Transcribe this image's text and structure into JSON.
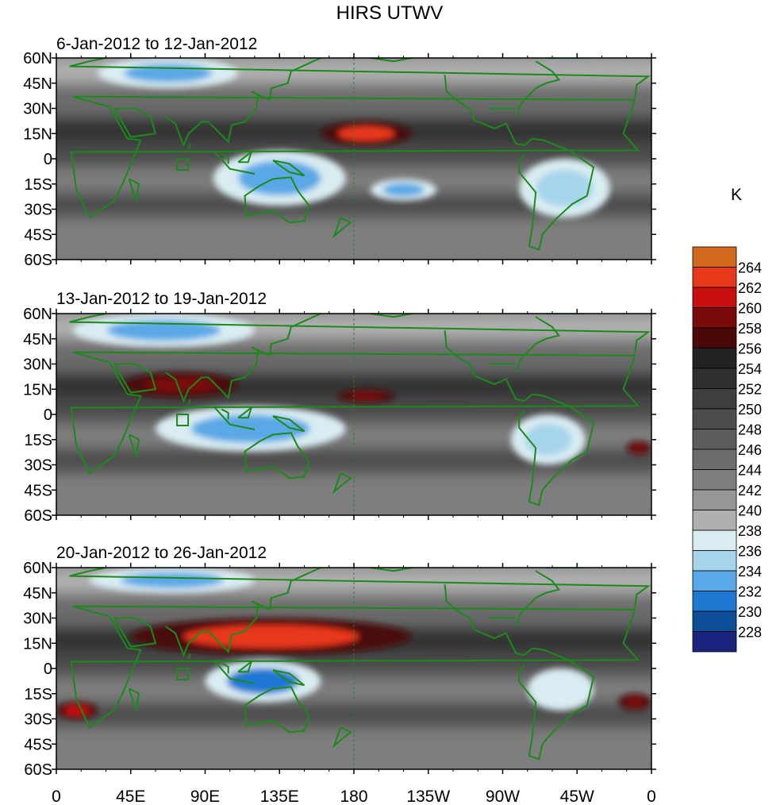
{
  "chart_data": {
    "type": "heatmap",
    "title": "HIRS UTWV",
    "unit": "K",
    "lat_ticks": [
      "60N",
      "45N",
      "30N",
      "15N",
      "0",
      "15S",
      "30S",
      "45S",
      "60S"
    ],
    "lat_values": [
      60,
      45,
      30,
      15,
      0,
      -15,
      -30,
      -45,
      -60
    ],
    "lon_ticks": [
      "0",
      "45E",
      "90E",
      "135E",
      "180",
      "135W",
      "90W",
      "45W",
      "0"
    ],
    "lon_values": [
      0,
      45,
      90,
      135,
      180,
      225,
      270,
      315,
      360
    ],
    "ylim": [
      -60,
      60
    ],
    "xlim": [
      0,
      360
    ],
    "colorbar": {
      "labels": [
        "264",
        "262",
        "260",
        "258",
        "256",
        "254",
        "252",
        "250",
        "248",
        "246",
        "244",
        "242",
        "240",
        "238",
        "236",
        "234",
        "232",
        "230",
        "228"
      ],
      "colors": [
        "#d2691e",
        "#e8381c",
        "#c80f0f",
        "#780a0a",
        "#4a0808",
        "#222222",
        "#303030",
        "#3e3e3e",
        "#4c4c4c",
        "#5c5c5c",
        "#6c6c6c",
        "#7e7e7e",
        "#969696",
        "#b0b0b0",
        "#d8ecf2",
        "#a6d4ea",
        "#5aa8e6",
        "#1f78d2",
        "#0f4f9a",
        "#1a237e"
      ]
    },
    "panels": [
      {
        "period": "6-Jan-2012 to 12-Jan-2012",
        "features": [
          {
            "kind": "warm",
            "lon": [
              160,
              215
            ],
            "lat": [
              8,
              22
            ],
            "peak": 262
          },
          {
            "kind": "moist",
            "lon": [
              25,
              110
            ],
            "lat": [
              42,
              60
            ],
            "peak": 232
          },
          {
            "kind": "moist",
            "lon": [
              95,
              175
            ],
            "lat": [
              -28,
              5
            ],
            "peak": 232
          },
          {
            "kind": "moist",
            "lon": [
              190,
              230
            ],
            "lat": [
              -25,
              -12
            ],
            "peak": 232
          },
          {
            "kind": "moist",
            "lon": [
              280,
              335
            ],
            "lat": [
              -35,
              0
            ],
            "peak": 234
          }
        ]
      },
      {
        "period": "13-Jan-2012 to 19-Jan-2012",
        "features": [
          {
            "kind": "warm",
            "lon": [
              40,
              110
            ],
            "lat": [
              10,
              25
            ],
            "peak": 258
          },
          {
            "kind": "warm",
            "lon": [
              170,
              205
            ],
            "lat": [
              7,
              15
            ],
            "peak": 258
          },
          {
            "kind": "warm",
            "lon": [
              345,
              360
            ],
            "lat": [
              -24,
              -16
            ],
            "peak": 258
          },
          {
            "kind": "moist",
            "lon": [
              10,
              120
            ],
            "lat": [
              40,
              60
            ],
            "peak": 232
          },
          {
            "kind": "moist",
            "lon": [
              60,
              175
            ],
            "lat": [
              -22,
              5
            ],
            "peak": 232
          },
          {
            "kind": "moist",
            "lon": [
              275,
              320
            ],
            "lat": [
              -30,
              0
            ],
            "peak": 234
          }
        ]
      },
      {
        "period": "20-Jan-2012 to 26-Jan-2012",
        "features": [
          {
            "kind": "warm",
            "lon": [
              45,
              215
            ],
            "lat": [
              8,
              30
            ],
            "peak": 262
          },
          {
            "kind": "warm",
            "lon": [
              0,
              25
            ],
            "lat": [
              -30,
              -20
            ],
            "peak": 260
          },
          {
            "kind": "warm",
            "lon": [
              340,
              360
            ],
            "lat": [
              -25,
              -15
            ],
            "peak": 258
          },
          {
            "kind": "moist",
            "lon": [
              20,
              120
            ],
            "lat": [
              45,
              60
            ],
            "peak": 232
          },
          {
            "kind": "moist",
            "lon": [
              90,
              160
            ],
            "lat": [
              -20,
              5
            ],
            "peak": 230
          },
          {
            "kind": "moist",
            "lon": [
              285,
              325
            ],
            "lat": [
              -25,
              0
            ],
            "peak": 236
          }
        ]
      }
    ]
  }
}
